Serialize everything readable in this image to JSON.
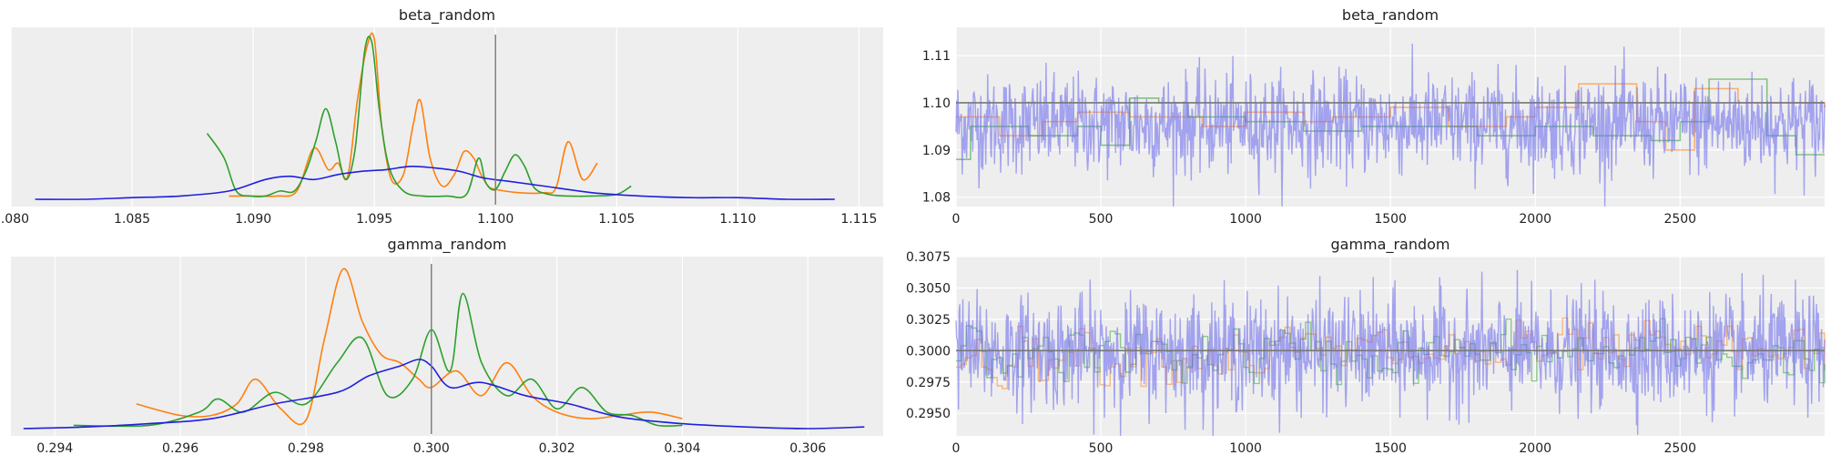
{
  "figure": {
    "background": "#ffffff",
    "panel_background": "#eeeeee",
    "grid": true,
    "grid_color": "#ffffff",
    "ref_line_color": "#777777"
  },
  "chart_data": [
    {
      "type": "line",
      "id": "kde_beta",
      "title": "beta_random",
      "xlim": [
        1.08,
        1.116
      ],
      "ylim": [
        0,
        1.0
      ],
      "xticks": [
        1.08,
        1.085,
        1.09,
        1.095,
        1.1,
        1.105,
        1.11,
        1.115
      ],
      "xtick_labels": [
        "1.080",
        "1.085",
        "1.090",
        "1.095",
        "1.100",
        "1.105",
        "1.110",
        "1.115"
      ],
      "yticks_visible": false,
      "ref_line": 1.1,
      "series": [
        {
          "color": "#ff7f0e",
          "x": [
            1.089,
            1.09,
            1.091,
            1.0918,
            1.0925,
            1.0931,
            1.0935,
            1.0939,
            1.0943,
            1.0947,
            1.095,
            1.0953,
            1.0957,
            1.0962,
            1.0966,
            1.0969,
            1.0973,
            1.0978,
            1.0983,
            1.0987,
            1.0991,
            1.0994,
            1.0997,
            1.1,
            1.101,
            1.102,
            1.1025,
            1.103,
            1.1036,
            1.1042
          ],
          "y": [
            0.02,
            0.02,
            0.02,
            0.05,
            0.31,
            0.18,
            0.22,
            0.14,
            0.6,
            0.93,
            0.97,
            0.45,
            0.12,
            0.15,
            0.45,
            0.6,
            0.25,
            0.08,
            0.15,
            0.29,
            0.25,
            0.15,
            0.08,
            0.06,
            0.04,
            0.04,
            0.07,
            0.35,
            0.12,
            0.22
          ]
        },
        {
          "color": "#2ca02c",
          "x": [
            1.0881,
            1.0888,
            1.0893,
            1.0899,
            1.0905,
            1.0911,
            1.0917,
            1.0922,
            1.0926,
            1.093,
            1.0934,
            1.0938,
            1.0942,
            1.0946,
            1.0949,
            1.0952,
            1.0956,
            1.0962,
            1.097,
            1.098,
            1.0988,
            1.0993,
            1.0996,
            1.1,
            1.1004,
            1.1008,
            1.1012,
            1.1016,
            1.1022,
            1.103,
            1.104,
            1.105,
            1.1056
          ],
          "y": [
            0.4,
            0.25,
            0.05,
            0.02,
            0.02,
            0.05,
            0.05,
            0.18,
            0.36,
            0.55,
            0.35,
            0.12,
            0.3,
            0.9,
            0.95,
            0.55,
            0.2,
            0.05,
            0.02,
            0.02,
            0.03,
            0.25,
            0.1,
            0.06,
            0.17,
            0.27,
            0.2,
            0.07,
            0.03,
            0.02,
            0.02,
            0.03,
            0.08
          ]
        },
        {
          "color": "#1f1fdf",
          "x": [
            1.081,
            1.083,
            1.085,
            1.087,
            1.089,
            1.0905,
            1.0915,
            1.0925,
            1.0935,
            1.0945,
            1.0955,
            1.0965,
            1.0975,
            1.0985,
            1.0995,
            1.1005,
            1.102,
            1.104,
            1.106,
            1.108,
            1.11,
            1.112,
            1.114
          ],
          "y": [
            0.0,
            0.0,
            0.01,
            0.02,
            0.05,
            0.12,
            0.14,
            0.12,
            0.15,
            0.17,
            0.18,
            0.2,
            0.19,
            0.17,
            0.13,
            0.11,
            0.08,
            0.04,
            0.02,
            0.01,
            0.01,
            0.0,
            0.0
          ]
        }
      ]
    },
    {
      "type": "line",
      "id": "trace_beta",
      "title": "beta_random",
      "xlim": [
        0,
        2999
      ],
      "ylim": [
        1.078,
        1.116
      ],
      "xticks": [
        0,
        500,
        1000,
        1500,
        2000,
        2500
      ],
      "xtick_labels": [
        "0",
        "500",
        "1000",
        "1500",
        "2000",
        "2500"
      ],
      "yticks": [
        1.08,
        1.09,
        1.1,
        1.11
      ],
      "ytick_labels": [
        "1.08",
        "1.09",
        "1.10",
        "1.11"
      ],
      "ref_line": 1.1,
      "series": [
        {
          "color": "#ff7f0e",
          "alpha": 0.55,
          "x": [
            0,
            150,
            300,
            420,
            600,
            850,
            1000,
            1200,
            1300,
            1500,
            1700,
            1900,
            2000,
            2150,
            2350,
            2450,
            2550,
            2700,
            2999
          ],
          "y": [
            1.097,
            1.093,
            1.096,
            1.098,
            1.097,
            1.095,
            1.098,
            1.096,
            1.097,
            1.099,
            1.095,
            1.097,
            1.099,
            1.104,
            1.096,
            1.09,
            1.103,
            1.1,
            1.099
          ]
        },
        {
          "color": "#2ca02c",
          "alpha": 0.55,
          "x": [
            0,
            50,
            250,
            420,
            500,
            600,
            700,
            800,
            1000,
            1200,
            1400,
            1600,
            1800,
            2000,
            2200,
            2400,
            2500,
            2600,
            2800,
            2900,
            2999
          ],
          "y": [
            1.088,
            1.095,
            1.093,
            1.095,
            1.091,
            1.101,
            1.1,
            1.097,
            1.096,
            1.094,
            1.095,
            1.095,
            1.093,
            1.095,
            1.093,
            1.092,
            1.096,
            1.105,
            1.093,
            1.089,
            1.089
          ]
        },
        {
          "color": "#6f6fef",
          "alpha": 0.6,
          "noisy": true,
          "center": 1.0955,
          "spread": 0.0052,
          "x": [
            0,
            2999
          ]
        }
      ]
    },
    {
      "type": "line",
      "id": "kde_gamma",
      "title": "gamma_random",
      "xlim": [
        0.2933,
        0.3072
      ],
      "ylim": [
        0,
        1.0
      ],
      "xticks": [
        0.294,
        0.296,
        0.298,
        0.3,
        0.302,
        0.304,
        0.306
      ],
      "xtick_labels": [
        "0.294",
        "0.296",
        "0.298",
        "0.300",
        "0.302",
        "0.304",
        "0.306"
      ],
      "yticks_visible": false,
      "ref_line": 0.3,
      "series": [
        {
          "color": "#ff7f0e",
          "x": [
            0.2953,
            0.296,
            0.2965,
            0.2969,
            0.2972,
            0.2976,
            0.298,
            0.2983,
            0.2986,
            0.2989,
            0.2992,
            0.2995,
            0.2998,
            0.3,
            0.3004,
            0.3008,
            0.3012,
            0.3016,
            0.302,
            0.3025,
            0.303,
            0.3035,
            0.304
          ],
          "y": [
            0.15,
            0.08,
            0.08,
            0.15,
            0.3,
            0.12,
            0.05,
            0.55,
            0.97,
            0.65,
            0.45,
            0.4,
            0.3,
            0.25,
            0.35,
            0.2,
            0.4,
            0.2,
            0.1,
            0.06,
            0.08,
            0.1,
            0.06
          ]
        },
        {
          "color": "#2ca02c",
          "x": [
            0.2943,
            0.2955,
            0.2963,
            0.2966,
            0.297,
            0.2975,
            0.298,
            0.2985,
            0.2989,
            0.2993,
            0.2997,
            0.3,
            0.3003,
            0.3005,
            0.3008,
            0.3012,
            0.3016,
            0.302,
            0.3024,
            0.3028,
            0.3032,
            0.3036,
            0.304
          ],
          "y": [
            0.02,
            0.02,
            0.1,
            0.18,
            0.1,
            0.22,
            0.15,
            0.4,
            0.55,
            0.2,
            0.3,
            0.6,
            0.35,
            0.82,
            0.4,
            0.2,
            0.3,
            0.12,
            0.25,
            0.1,
            0.08,
            0.02,
            0.02
          ]
        },
        {
          "color": "#1f1fdf",
          "x": [
            0.2935,
            0.2945,
            0.2955,
            0.2965,
            0.2975,
            0.2985,
            0.299,
            0.2995,
            0.2998,
            0.3,
            0.3003,
            0.3008,
            0.3015,
            0.3022,
            0.303,
            0.304,
            0.305,
            0.306,
            0.3069
          ],
          "y": [
            0.0,
            0.01,
            0.03,
            0.06,
            0.15,
            0.22,
            0.32,
            0.38,
            0.42,
            0.38,
            0.25,
            0.28,
            0.2,
            0.15,
            0.07,
            0.03,
            0.01,
            0.0,
            0.01
          ]
        }
      ]
    },
    {
      "type": "line",
      "id": "trace_gamma",
      "title": "gamma_random",
      "xlim": [
        0,
        2999
      ],
      "ylim": [
        0.2932,
        0.3075
      ],
      "xticks": [
        0,
        500,
        1000,
        1500,
        2000,
        2500
      ],
      "xtick_labels": [
        "0",
        "500",
        "1000",
        "1500",
        "2000",
        "2500"
      ],
      "yticks": [
        0.295,
        0.2975,
        0.3,
        0.3025,
        0.305,
        0.3075
      ],
      "ytick_labels": [
        "0.2950",
        "0.2975",
        "0.3000",
        "0.3025",
        "0.3050",
        "0.3075"
      ],
      "ref_line": 0.3,
      "series": [
        {
          "color": "#ff7f0e",
          "alpha": 0.5,
          "noisy": true,
          "center": 0.2998,
          "spread": 0.0018,
          "step": true,
          "x": [
            0,
            2999
          ]
        },
        {
          "color": "#2ca02c",
          "alpha": 0.5,
          "noisy": true,
          "center": 0.2997,
          "spread": 0.0018,
          "step": true,
          "x": [
            0,
            2999
          ]
        },
        {
          "color": "#6f6fef",
          "alpha": 0.6,
          "noisy": true,
          "center": 0.2999,
          "spread": 0.0022,
          "x": [
            0,
            2999
          ]
        }
      ]
    }
  ]
}
